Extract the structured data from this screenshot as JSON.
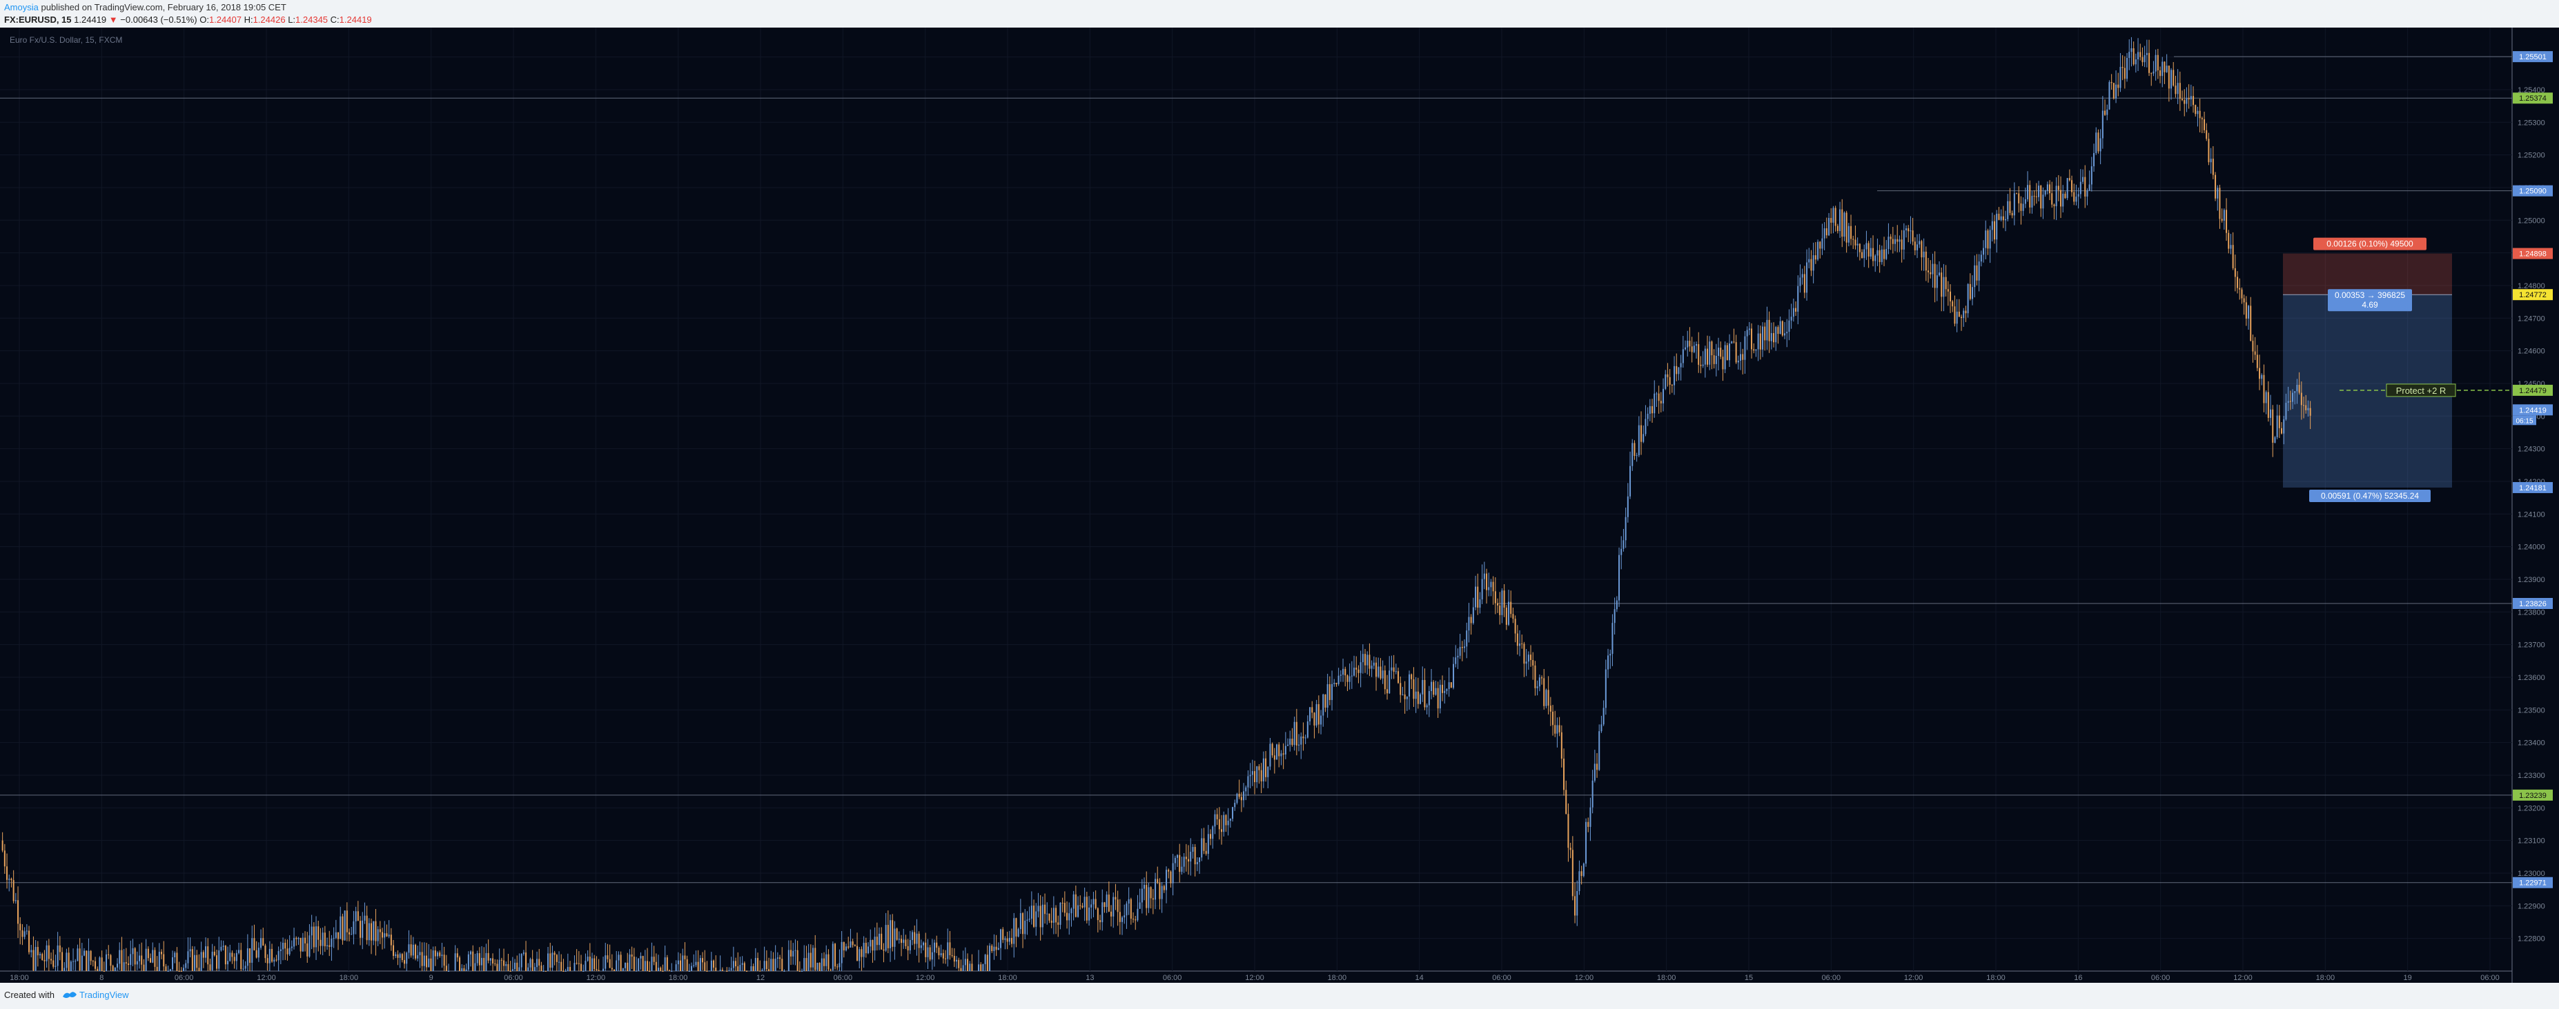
{
  "header": {
    "author": "Amoysia",
    "published_text": "published on TradingView.com, February 16, 2018 19:05 CET",
    "symbol": "FX:EURUSD, 15",
    "last_price": "1.24419",
    "change": "−0.00643 (−0.51%)",
    "open_label": "O:",
    "open": "1.24407",
    "high_label": "H:",
    "high": "1.24426",
    "low_label": "L:",
    "low": "1.24345",
    "close_label": "C:",
    "close": "1.24419"
  },
  "chart_title": "Euro Fx/U.S. Dollar, 15, FXCM",
  "footer": {
    "created_with": "Created with",
    "brand": "TradingView"
  },
  "colors": {
    "background": "#050a16",
    "up": "#6c9bd8",
    "down": "#e8a35c",
    "grid": "#111726",
    "hline": "#8a93a6",
    "label_blue": "#5e8fdc",
    "label_green": "#8bc34a",
    "label_yellow": "#f5e332",
    "label_red": "#e55c4a"
  },
  "chart_data": {
    "type": "candlestick",
    "title": "Euro Fx/U.S. Dollar, 15, FXCM",
    "ylim": [
      1.227,
      1.2559
    ],
    "y_ticks": [
      "1.25500",
      "1.25400",
      "1.25300",
      "1.25200",
      "1.25100",
      "1.25000",
      "1.24900",
      "1.24800",
      "1.24700",
      "1.24600",
      "1.24500",
      "1.24400",
      "1.24300",
      "1.24200",
      "1.24100",
      "1.24000",
      "1.23900",
      "1.23800",
      "1.23700",
      "1.23600",
      "1.23500",
      "1.23400",
      "1.23300",
      "1.23200",
      "1.23100",
      "1.23000",
      "1.22900",
      "1.22800"
    ],
    "x_ticks": [
      "18:00",
      "8",
      "06:00",
      "12:00",
      "18:00",
      "9",
      "06:00",
      "12:00",
      "18:00",
      "12",
      "06:00",
      "12:00",
      "18:00",
      "13",
      "06:00",
      "12:00",
      "18:00",
      "14",
      "06:00",
      "12:00",
      "18:00",
      "15",
      "06:00",
      "12:00",
      "18:00",
      "16",
      "06:00",
      "12:00",
      "18:00",
      "19",
      "06:00"
    ],
    "price_path": [
      [
        0.0,
        1.231
      ],
      [
        0.012,
        1.2274
      ],
      [
        0.07,
        1.2272
      ],
      [
        0.12,
        1.2278
      ],
      [
        0.14,
        1.2285
      ],
      [
        0.17,
        1.2272
      ],
      [
        0.3,
        1.227
      ],
      [
        0.32,
        1.2273
      ],
      [
        0.34,
        1.2275
      ],
      [
        0.355,
        1.2282
      ],
      [
        0.39,
        1.227
      ],
      [
        0.405,
        1.2285
      ],
      [
        0.43,
        1.229
      ],
      [
        0.45,
        1.2288
      ],
      [
        0.48,
        1.231
      ],
      [
        0.51,
        1.234
      ],
      [
        0.52,
        1.2345
      ],
      [
        0.54,
        1.2365
      ],
      [
        0.55,
        1.236
      ],
      [
        0.575,
        1.2353
      ],
      [
        0.59,
        1.239
      ],
      [
        0.6,
        1.238
      ],
      [
        0.62,
        1.2345
      ],
      [
        0.627,
        1.229
      ],
      [
        0.635,
        1.233
      ],
      [
        0.65,
        1.243
      ],
      [
        0.67,
        1.246
      ],
      [
        0.685,
        1.2458
      ],
      [
        0.71,
        1.2468
      ],
      [
        0.73,
        1.2502
      ],
      [
        0.745,
        1.2488
      ],
      [
        0.76,
        1.2497
      ],
      [
        0.78,
        1.247
      ],
      [
        0.79,
        1.2492
      ],
      [
        0.8,
        1.2505
      ],
      [
        0.815,
        1.2508
      ],
      [
        0.83,
        1.2509
      ],
      [
        0.84,
        1.254
      ],
      [
        0.85,
        1.255
      ],
      [
        0.86,
        1.2548
      ],
      [
        0.875,
        1.2533
      ],
      [
        0.885,
        1.25
      ],
      [
        0.895,
        1.247
      ],
      [
        0.905,
        1.2435
      ],
      [
        0.915,
        1.2447
      ],
      [
        0.92,
        1.2442
      ]
    ],
    "horizontal_levels": [
      {
        "value": "1.25501",
        "color": "#5e8fdc"
      },
      {
        "value": "1.25374",
        "color": "#8bc34a"
      },
      {
        "value": "1.25090",
        "color": "#5e8fdc"
      },
      {
        "value": "1.24898",
        "color": "#e55c4a"
      },
      {
        "value": "1.24772",
        "color": "#f5e332"
      },
      {
        "value": "1.24479",
        "color": "#8bc34a"
      },
      {
        "value": "1.24419",
        "color": "#5e8fdc"
      },
      {
        "value": "1.24181",
        "color": "#5e8fdc"
      },
      {
        "value": "1.23826",
        "color": "#5e8fdc"
      },
      {
        "value": "1.23239",
        "color": "#8bc34a"
      },
      {
        "value": "1.22971",
        "color": "#5e8fdc"
      }
    ],
    "countdown": "06:15",
    "position_tool": {
      "stop_label": "0.00126 (0.10%) 49500",
      "center_label_1": "0.00353 → 396825",
      "center_label_2": "4.69",
      "target_label": "0.00591 (0.47%) 52345.24",
      "protect_label": "Protect +2 R"
    }
  }
}
